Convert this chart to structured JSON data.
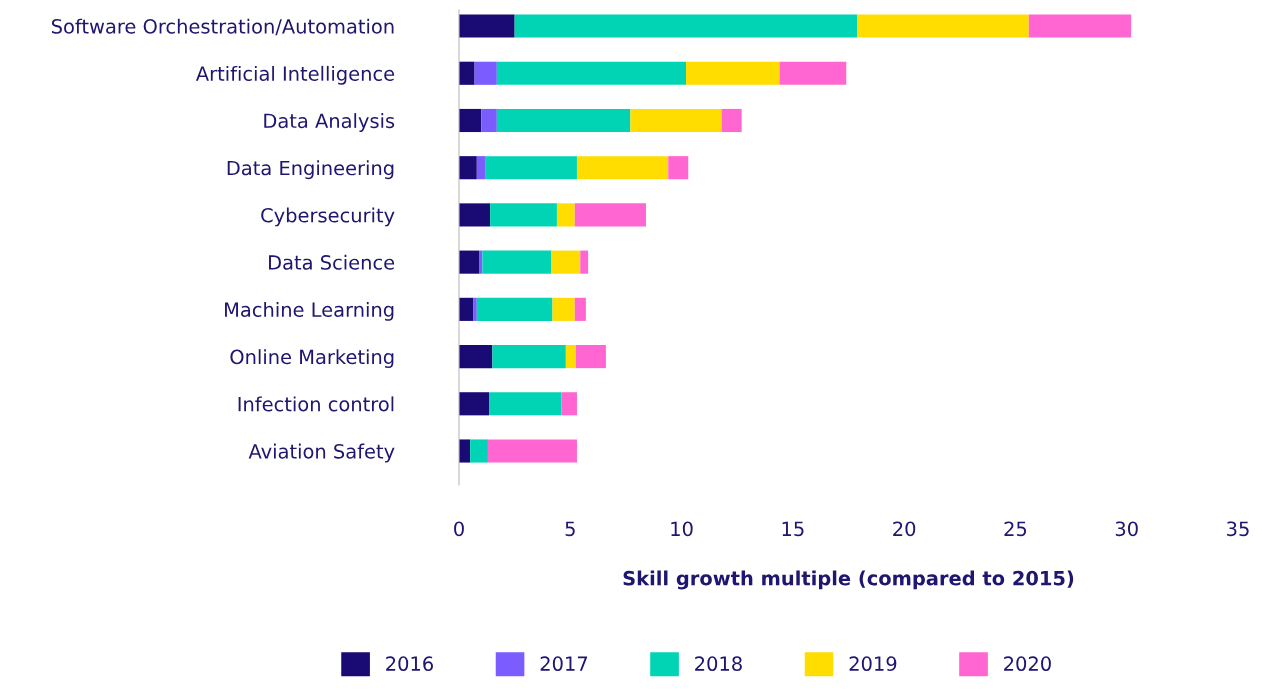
{
  "chart_data": {
    "type": "bar",
    "orientation": "horizontal",
    "stacked": true,
    "categories": [
      "Software Orchestration/Automation",
      "Artificial Intelligence",
      "Data Analysis",
      "Data Engineering",
      "Cybersecurity",
      "Data Science",
      "Machine Learning",
      "Online Marketing",
      "Infection control",
      "Aviation Safety"
    ],
    "series": [
      {
        "name": "2016",
        "color": "#1a0a73",
        "values": [
          2.5,
          0.7,
          1.0,
          0.8,
          1.4,
          0.9,
          0.65,
          1.5,
          1.35,
          0.5
        ]
      },
      {
        "name": "2017",
        "color": "#7b5cff",
        "values": [
          0,
          1.0,
          0.7,
          0.4,
          0,
          0.15,
          0.15,
          0,
          0,
          0
        ]
      },
      {
        "name": "2018",
        "color": "#00d4b4",
        "values": [
          15.4,
          8.5,
          6.0,
          4.1,
          3.0,
          3.1,
          3.4,
          3.3,
          3.25,
          0.8
        ]
      },
      {
        "name": "2019",
        "color": "#ffdd00",
        "values": [
          7.7,
          4.2,
          4.1,
          4.1,
          0.8,
          1.3,
          1.0,
          0.45,
          0,
          0
        ]
      },
      {
        "name": "2020",
        "color": "#ff66d1",
        "values": [
          4.6,
          3.0,
          0.9,
          0.9,
          3.2,
          0.35,
          0.5,
          1.35,
          0.7,
          4.0
        ]
      }
    ],
    "xlabel": "Skill growth multiple (compared to 2015)",
    "xlim": [
      0,
      35
    ],
    "xticks": [
      0,
      5,
      10,
      15,
      20,
      25,
      30,
      35
    ],
    "grid": false,
    "legend": "bottom"
  }
}
